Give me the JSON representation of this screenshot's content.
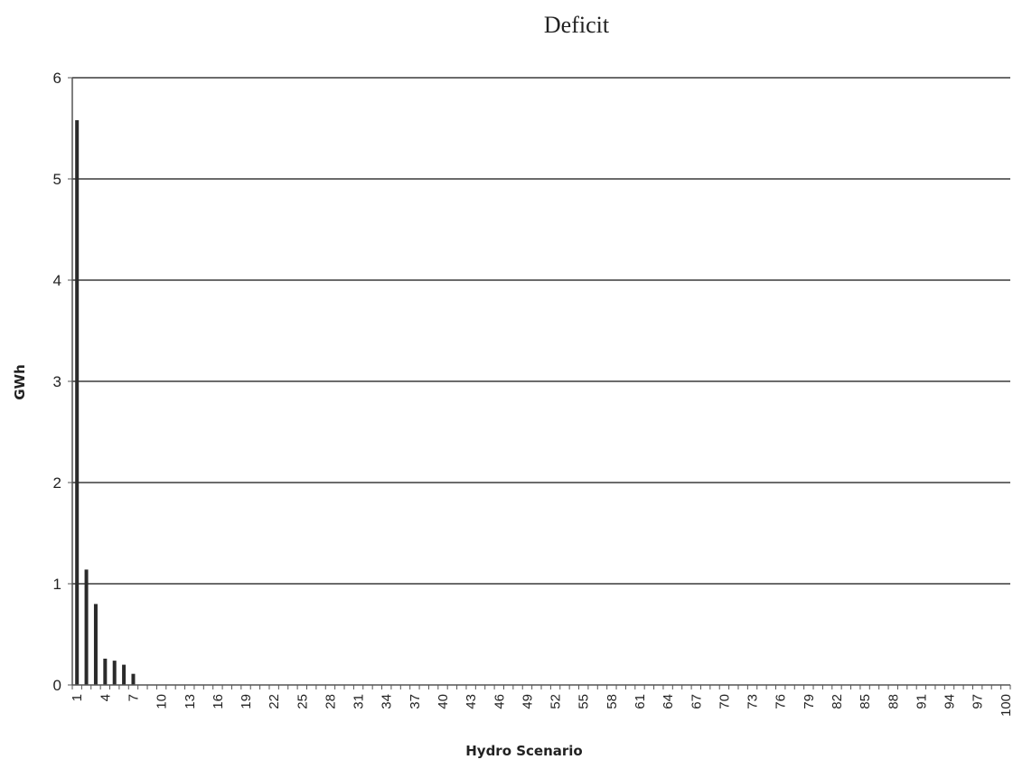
{
  "chart_data": {
    "type": "bar",
    "title": "Deficit",
    "xlabel": "Hydro Scenario",
    "ylabel": "GWh",
    "ylim": [
      0,
      6
    ],
    "yticks": [
      "0",
      "1",
      "2",
      "3",
      "4",
      "5",
      "6"
    ],
    "grid": true,
    "x_tick_labels": [
      "1",
      "4",
      "7",
      "10",
      "13",
      "16",
      "19",
      "22",
      "25",
      "28",
      "31",
      "34",
      "37",
      "40",
      "43",
      "46",
      "49",
      "52",
      "55",
      "58",
      "61",
      "64",
      "67",
      "70",
      "73",
      "76",
      "79",
      "82",
      "85",
      "88",
      "91",
      "94",
      "97",
      "100"
    ],
    "categories": [
      "1",
      "2",
      "3",
      "4",
      "5",
      "6",
      "7",
      "8",
      "9",
      "10",
      "11",
      "12",
      "13",
      "14",
      "15",
      "16",
      "17",
      "18",
      "19",
      "20",
      "21",
      "22",
      "23",
      "24",
      "25",
      "26",
      "27",
      "28",
      "29",
      "30",
      "31",
      "32",
      "33",
      "34",
      "35",
      "36",
      "37",
      "38",
      "39",
      "40",
      "41",
      "42",
      "43",
      "44",
      "45",
      "46",
      "47",
      "48",
      "49",
      "50",
      "51",
      "52",
      "53",
      "54",
      "55",
      "56",
      "57",
      "58",
      "59",
      "60",
      "61",
      "62",
      "63",
      "64",
      "65",
      "66",
      "67",
      "68",
      "69",
      "70",
      "71",
      "72",
      "73",
      "74",
      "75",
      "76",
      "77",
      "78",
      "79",
      "80",
      "81",
      "82",
      "83",
      "84",
      "85",
      "86",
      "87",
      "88",
      "89",
      "90",
      "91",
      "92",
      "93",
      "94",
      "95",
      "96",
      "97",
      "98",
      "99",
      "100"
    ],
    "values": [
      5.58,
      1.14,
      0.8,
      0.26,
      0.24,
      0.2,
      0.11,
      0,
      0,
      0,
      0,
      0,
      0,
      0,
      0,
      0,
      0,
      0,
      0,
      0,
      0,
      0,
      0,
      0,
      0,
      0,
      0,
      0,
      0,
      0,
      0,
      0,
      0,
      0,
      0,
      0,
      0,
      0,
      0,
      0,
      0,
      0,
      0,
      0,
      0,
      0,
      0,
      0,
      0,
      0,
      0,
      0,
      0,
      0,
      0,
      0,
      0,
      0,
      0,
      0,
      0,
      0,
      0,
      0,
      0,
      0,
      0,
      0,
      0,
      0,
      0,
      0,
      0,
      0,
      0,
      0,
      0,
      0,
      0,
      0,
      0,
      0,
      0,
      0,
      0,
      0,
      0,
      0,
      0,
      0,
      0,
      0,
      0,
      0,
      0,
      0,
      0,
      0,
      0,
      0
    ],
    "bar_color": "#2a2a2a",
    "grid_color": "#6b6b6b"
  }
}
